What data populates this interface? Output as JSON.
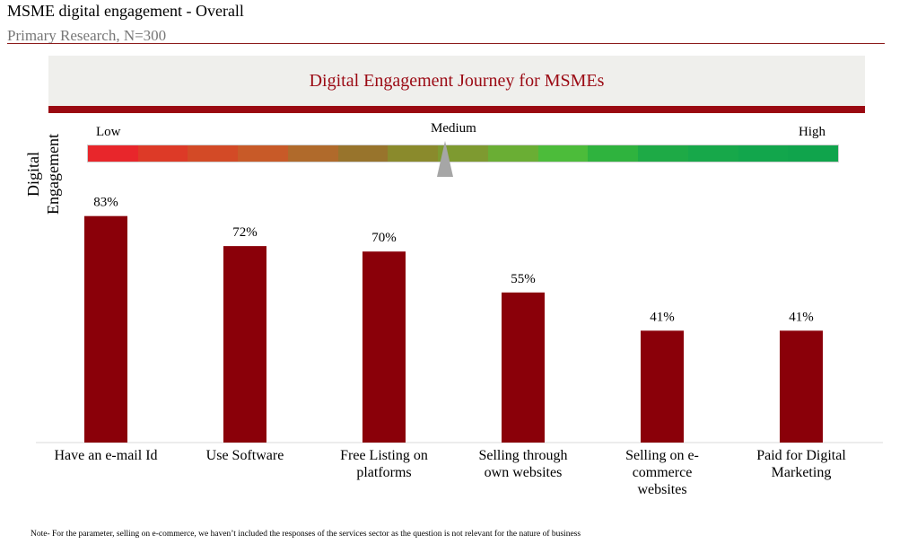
{
  "header": {
    "title": "MSME digital engagement - Overall",
    "subtitle": "Primary Research, N=300"
  },
  "banner": {
    "text": "Digital Engagement Journey for MSMEs",
    "background_color": "#efefec",
    "accent_color": "#9a0911"
  },
  "engagement_scale": {
    "axis_label": "Digital Engagement",
    "low_label": "Low",
    "medium_label": "Medium",
    "high_label": "High",
    "gradient_colors": [
      "#e8262b",
      "#dd3a27",
      "#d34a26",
      "#c85a28",
      "#b06a2b",
      "#98742c",
      "#8a8a2c",
      "#7e9a30",
      "#6aae34",
      "#4cbc3a",
      "#2fb33e",
      "#1eaa46",
      "#17a84a",
      "#12a64c",
      "#10a44c"
    ]
  },
  "chart_data": {
    "type": "bar",
    "categories": [
      "Have an e-mail Id",
      "Use Software",
      "Free Listing on platforms",
      "Selling through own websites",
      "Selling on e-commerce websites",
      "Paid for Digital Marketing"
    ],
    "category_lines": [
      [
        "Have an e-mail Id"
      ],
      [
        "Use Software"
      ],
      [
        "Free Listing on",
        "platforms"
      ],
      [
        "Selling through",
        "own websites"
      ],
      [
        "Selling on e-",
        "commerce",
        "websites"
      ],
      [
        "Paid for Digital",
        "Marketing"
      ]
    ],
    "values": [
      83,
      72,
      70,
      55,
      41,
      41
    ],
    "data_labels": [
      "83%",
      "72%",
      "70%",
      "55%",
      "41%",
      "41%"
    ],
    "unit": "%",
    "ylim": [
      0,
      100
    ],
    "bar_color": "#8a0009",
    "grid": false,
    "legend": "none"
  },
  "footer": {
    "note": "Note- For the parameter, selling on e-commerce, we haven’t included the responses of the services sector as the question is not relevant for the nature of business"
  }
}
